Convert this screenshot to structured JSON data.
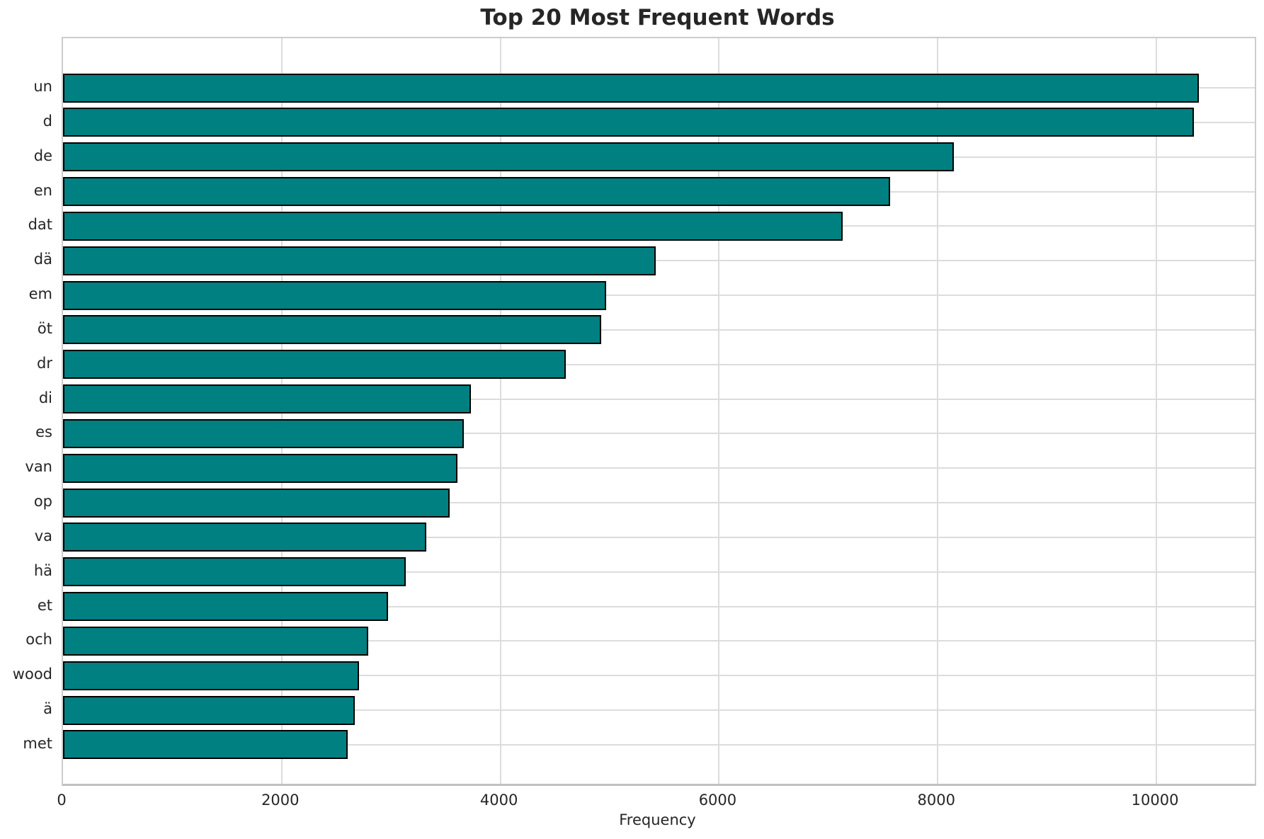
{
  "chart_data": {
    "type": "bar",
    "orientation": "horizontal",
    "title": "Top 20 Most Frequent Words",
    "xlabel": "Frequency",
    "ylabel": "",
    "categories": [
      "un",
      "d",
      "de",
      "en",
      "dat",
      "dä",
      "em",
      "öt",
      "dr",
      "di",
      "es",
      "van",
      "op",
      "va",
      "hä",
      "et",
      "och",
      "wood",
      "ä",
      "met"
    ],
    "values": [
      10390,
      10340,
      8150,
      7565,
      7130,
      5420,
      4970,
      4920,
      4600,
      3730,
      3665,
      3605,
      3535,
      3320,
      3135,
      2975,
      2790,
      2705,
      2670,
      2605
    ],
    "xticks": [
      0,
      2000,
      4000,
      6000,
      8000,
      10000
    ],
    "xlim": [
      0,
      10900
    ],
    "grid": true,
    "legend_position": "none",
    "bar_color": "#008080",
    "bar_edge_color": "#000000",
    "grid_color": "#dcdcdc",
    "text_color": "#262626",
    "background_color": "#ffffff"
  }
}
